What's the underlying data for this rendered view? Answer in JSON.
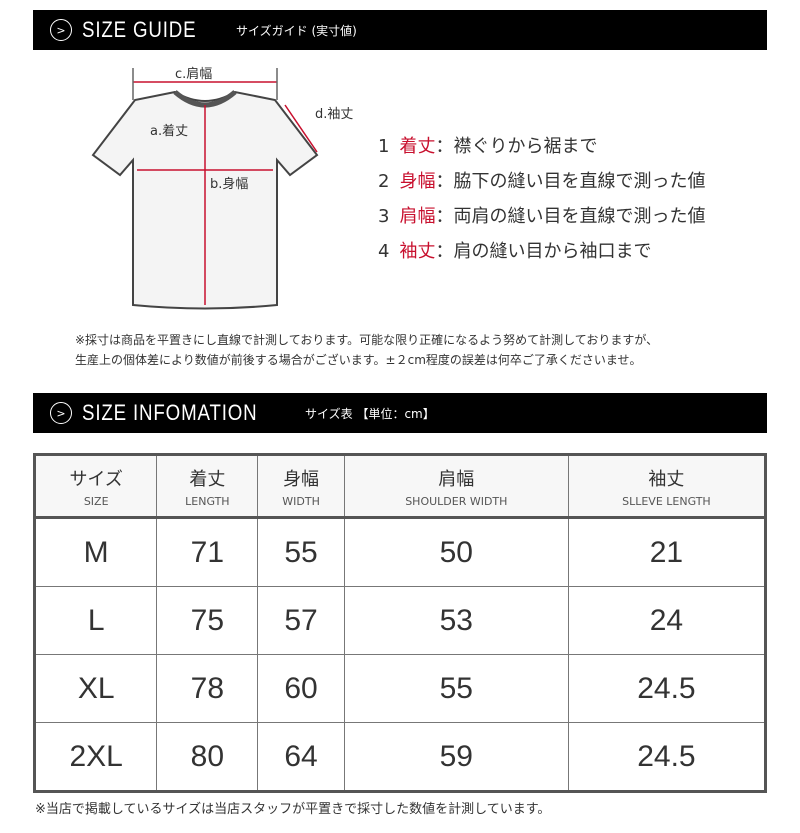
{
  "guide": {
    "title": "SIZE GUIDE",
    "subtitle": "サイズガイド (実寸値)"
  },
  "diagram": {
    "a": "a.着丈",
    "b": "b.身幅",
    "c": "c.肩幅",
    "d": "d.袖丈"
  },
  "legend": [
    {
      "num": "1",
      "key": "着丈",
      "desc": "：襟ぐりから裾まで"
    },
    {
      "num": "2",
      "key": "身幅",
      "desc": "：脇下の縫い目を直線で測った値"
    },
    {
      "num": "3",
      "key": "肩幅",
      "desc": "：両肩の縫い目を直線で測った値"
    },
    {
      "num": "4",
      "key": "袖丈",
      "desc": "：肩の縫い目から袖口まで"
    }
  ],
  "notes": [
    "※採寸は商品を平置きにし直線で計測しております。可能な限り正確になるよう努めて計測しておりますが、",
    "生産上の個体差により数値が前後する場合がございます。±２cm程度の誤差は何卒ご了承くださいませ。"
  ],
  "info": {
    "title": "SIZE INFOMATION",
    "subtitle": "サイズ表 【単位：cm】"
  },
  "table": {
    "headers": [
      {
        "ja": "サイズ",
        "en": "SIZE"
      },
      {
        "ja": "着丈",
        "en": "LENGTH"
      },
      {
        "ja": "身幅",
        "en": "WIDTH"
      },
      {
        "ja": "肩幅",
        "en": "SHOULDER WIDTH"
      },
      {
        "ja": "袖丈",
        "en": "SLLEVE LENGTH"
      }
    ],
    "rows": [
      [
        "M",
        "71",
        "55",
        "50",
        "21"
      ],
      [
        "L",
        "75",
        "57",
        "53",
        "24"
      ],
      [
        "XL",
        "78",
        "60",
        "55",
        "24.5"
      ],
      [
        "2XL",
        "80",
        "64",
        "59",
        "24.5"
      ]
    ]
  },
  "footer": "※当店で掲載しているサイズは当店スタッフが平置きで採寸した数値を計測しています。",
  "accent": "#c8102e"
}
